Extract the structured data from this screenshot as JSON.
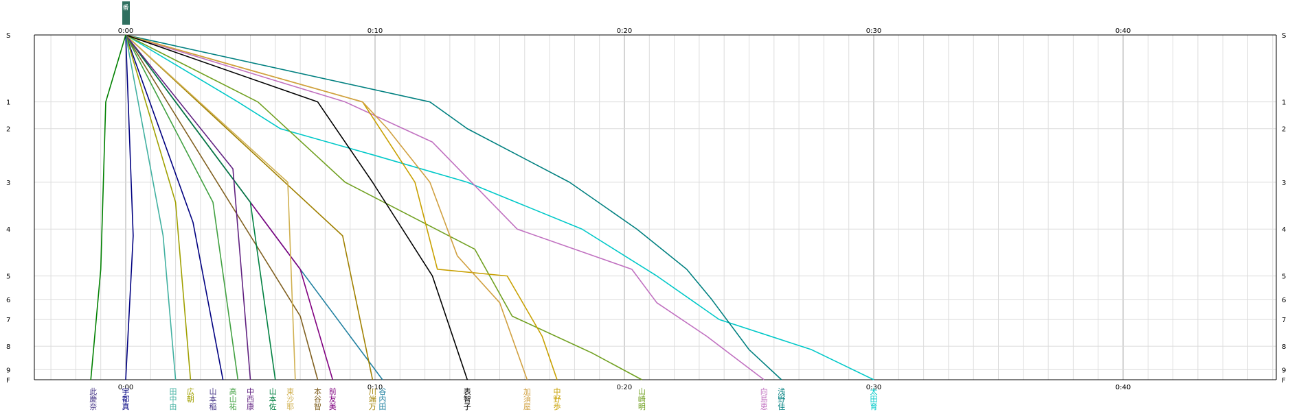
{
  "chart_data": {
    "type": "line",
    "title": "",
    "xlabel": "",
    "ylabel": "",
    "x_unit": "minutes",
    "xlim": [
      -5,
      46
    ],
    "x_tick_labels": [
      {
        "x": 0,
        "label": "0:00"
      },
      {
        "x": 10,
        "label": "0:10"
      },
      {
        "x": 20,
        "label": "0:20"
      },
      {
        "x": 30,
        "label": "0:30"
      },
      {
        "x": 40,
        "label": "0:40"
      }
    ],
    "y_levels": [
      {
        "label": "S",
        "pos": 0
      },
      {
        "label": "1",
        "pos": 1
      },
      {
        "label": "2",
        "pos": 1.4
      },
      {
        "label": "3",
        "pos": 2.2
      },
      {
        "label": "4",
        "pos": 2.9
      },
      {
        "label": "5",
        "pos": 3.6
      },
      {
        "label": "6",
        "pos": 3.95
      },
      {
        "label": "7",
        "pos": 4.25
      },
      {
        "label": "8",
        "pos": 4.65
      },
      {
        "label": "9",
        "pos": 5.0
      },
      {
        "label": "F",
        "pos": 5.15
      }
    ],
    "grid": true,
    "top_marker": "番",
    "series": [
      {
        "name": "太田 育",
        "color": "#00c8c8",
        "points": [
          [
            0,
            0
          ],
          [
            4.5,
            1
          ],
          [
            6.2,
            1.4
          ],
          [
            10,
            1.8
          ],
          [
            13.7,
            2.2
          ],
          [
            18.3,
            2.9
          ],
          [
            21.3,
            3.6
          ],
          [
            23.8,
            4.25
          ],
          [
            27.5,
            4.7
          ],
          [
            30,
            5.15
          ]
        ]
      },
      {
        "name": "浅野 佳",
        "color": "#008080",
        "points": [
          [
            0,
            0
          ],
          [
            12.2,
            1
          ],
          [
            13.7,
            1.4
          ],
          [
            17.8,
            2.2
          ],
          [
            20.5,
            2.9
          ],
          [
            22.5,
            3.5
          ],
          [
            23.5,
            3.95
          ],
          [
            25,
            4.7
          ],
          [
            26.3,
            5.15
          ]
        ]
      },
      {
        "name": "向島 恵",
        "color": "#c070c0",
        "points": [
          [
            0,
            0
          ],
          [
            8.8,
            1
          ],
          [
            12.3,
            1.6
          ],
          [
            15.7,
            2.9
          ],
          [
            20.3,
            3.5
          ],
          [
            21.3,
            4.0
          ],
          [
            23.3,
            4.5
          ],
          [
            25.6,
            5.15
          ]
        ]
      },
      {
        "name": "山崎 明",
        "color": "#70a020",
        "points": [
          [
            0,
            0
          ],
          [
            5.3,
            1
          ],
          [
            8.8,
            2.2
          ],
          [
            14,
            3.2
          ],
          [
            15.5,
            4.2
          ],
          [
            18.7,
            4.75
          ],
          [
            20.7,
            5.15
          ]
        ]
      },
      {
        "name": "中野 歩",
        "color": "#c8a000",
        "points": [
          [
            0,
            0
          ],
          [
            9.5,
            1
          ],
          [
            11.6,
            2.2
          ],
          [
            12.5,
            3.5
          ],
          [
            15.3,
            3.6
          ],
          [
            16.7,
            4.5
          ],
          [
            17.3,
            5.15
          ]
        ]
      },
      {
        "name": "加須 屋",
        "color": "#d0a040",
        "points": [
          [
            0,
            0
          ],
          [
            9.5,
            1
          ],
          [
            10.5,
            1.4
          ],
          [
            12.2,
            2.2
          ],
          [
            13.3,
            3.3
          ],
          [
            15,
            4.0
          ],
          [
            16.1,
            5.15
          ]
        ]
      },
      {
        "name": "表 智子",
        "color": "#000000",
        "points": [
          [
            0,
            0
          ],
          [
            7.7,
            1
          ],
          [
            9.9,
            2.2
          ],
          [
            12.3,
            3.6
          ],
          [
            13.7,
            5.15
          ]
        ]
      },
      {
        "name": "谷内 田",
        "color": "#2080a0",
        "points": [
          [
            0,
            0
          ],
          [
            10.3,
            5.15
          ]
        ]
      },
      {
        "name": "川端 万",
        "color": "#a08000",
        "points": [
          [
            0,
            0
          ],
          [
            8.7,
            3
          ],
          [
            9.9,
            5.15
          ]
        ]
      },
      {
        "name": "前 友美",
        "color": "#800080",
        "points": [
          [
            0,
            0
          ],
          [
            7,
            3.5
          ],
          [
            8.3,
            5.15
          ]
        ]
      },
      {
        "name": "本谷 智",
        "color": "#806020",
        "points": [
          [
            0,
            0
          ],
          [
            7,
            4.2
          ],
          [
            7.7,
            5.15
          ]
        ]
      },
      {
        "name": "東沙 耶",
        "color": "#d0b050",
        "points": [
          [
            0,
            0
          ],
          [
            6.5,
            2.2
          ],
          [
            6.8,
            5.15
          ]
        ]
      },
      {
        "name": "山本 佐",
        "color": "#008040",
        "points": [
          [
            0,
            0
          ],
          [
            5,
            2.5
          ],
          [
            6,
            5.15
          ]
        ]
      },
      {
        "name": "中西 康",
        "color": "#602080",
        "points": [
          [
            0,
            0
          ],
          [
            4.3,
            2
          ],
          [
            5,
            5.15
          ]
        ]
      },
      {
        "name": "高山 祐",
        "color": "#40a040",
        "points": [
          [
            0,
            0
          ],
          [
            3.5,
            2.5
          ],
          [
            4.5,
            5.15
          ]
        ]
      },
      {
        "name": "高橋 華",
        "color": "#000080",
        "points": [
          [
            0,
            0
          ],
          [
            2.7,
            2.8
          ],
          [
            3.9,
            5.15
          ]
        ]
      },
      {
        "name": "広 朝",
        "color": "#a0a000",
        "points": [
          [
            0,
            0
          ],
          [
            2,
            2.5
          ],
          [
            2.6,
            5.15
          ]
        ]
      },
      {
        "name": "田中 由",
        "color": "#40b0a0",
        "points": [
          [
            0,
            0
          ],
          [
            1.5,
            3
          ],
          [
            2,
            5.15
          ]
        ]
      },
      {
        "name": "宇都 真",
        "color": "#000080",
        "points": [
          [
            0,
            0
          ],
          [
            0.3,
            3
          ],
          [
            0,
            5.15
          ]
        ]
      },
      {
        "name": "此 慶奈",
        "color": "#008000",
        "points": [
          [
            0,
            0
          ],
          [
            -0.8,
            1
          ],
          [
            -1,
            3.5
          ],
          [
            -1.4,
            5.15
          ]
        ]
      }
    ],
    "bottom_labels": [
      {
        "x": -1.3,
        "name": "此慶奈"
      },
      {
        "x": 0,
        "name": "宇都 真"
      },
      {
        "x": 1.9,
        "name": "田中 由"
      },
      {
        "x": 2.6,
        "name": "広 朝"
      },
      {
        "x": 3.5,
        "name": "山本 稲"
      },
      {
        "x": 4.3,
        "name": "高山 祐"
      },
      {
        "x": 5.0,
        "name": "中西 康"
      },
      {
        "x": 5.9,
        "name": "山本 佐"
      },
      {
        "x": 6.6,
        "name": "東沙 耶"
      },
      {
        "x": 7.7,
        "name": "本谷 智"
      },
      {
        "x": 8.3,
        "name": "前 友美"
      },
      {
        "x": 9.9,
        "name": "川端 万"
      },
      {
        "x": 10.3,
        "name": "谷内 田"
      },
      {
        "x": 13.7,
        "name": "表 智子"
      },
      {
        "x": 16.1,
        "name": "加須 屋"
      },
      {
        "x": 17.3,
        "name": "中野 歩"
      },
      {
        "x": 20.7,
        "name": "山崎 明"
      },
      {
        "x": 25.6,
        "name": "向島 恵"
      },
      {
        "x": 26.3,
        "name": "浅野 佳"
      },
      {
        "x": 30,
        "name": "太田 育"
      }
    ]
  }
}
